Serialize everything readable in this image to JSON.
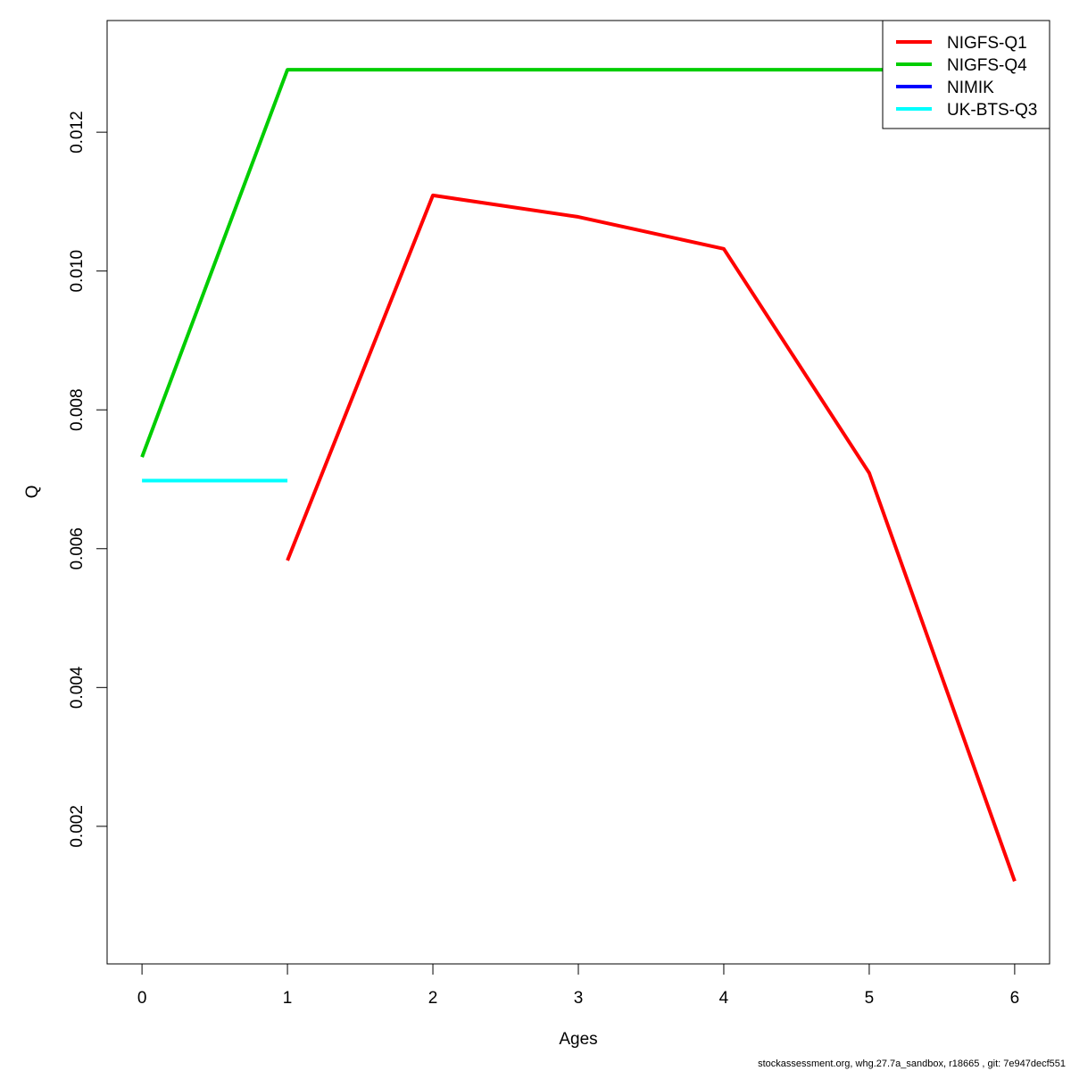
{
  "chart_data": {
    "type": "line",
    "title": "",
    "xlabel": "Ages",
    "ylabel": "Q",
    "xlim": [
      -0.24,
      6.24
    ],
    "ylim": [
      1.8e-05,
      0.013609
    ],
    "x_ticks": [
      0,
      1,
      2,
      3,
      4,
      5,
      6
    ],
    "x_tick_labels": [
      "0",
      "1",
      "2",
      "3",
      "4",
      "5",
      "6"
    ],
    "y_ticks": [
      0.002,
      0.004,
      0.006,
      0.008,
      0.01,
      0.012
    ],
    "y_tick_labels": [
      "0.002",
      "0.004",
      "0.006",
      "0.008",
      "0.010",
      "0.012"
    ],
    "grid": false,
    "legend_position": "top-right",
    "series": [
      {
        "name": "NIGFS-Q1",
        "color": "#ff0000",
        "x": [
          1,
          2,
          3,
          4,
          5,
          6
        ],
        "y": [
          0.00583,
          0.01109,
          0.01078,
          0.01032,
          0.00709,
          0.00121
        ]
      },
      {
        "name": "NIGFS-Q4",
        "color": "#00cd00",
        "x": [
          0,
          1,
          2,
          3,
          4,
          5,
          6
        ],
        "y": [
          0.00732,
          0.0129,
          0.0129,
          0.0129,
          0.0129,
          0.0129,
          0.0129
        ]
      },
      {
        "name": "NIMIK",
        "color": "#0000ff",
        "x": [],
        "y": []
      },
      {
        "name": "UK-BTS-Q3",
        "color": "#00ffff",
        "x": [
          0,
          1
        ],
        "y": [
          0.00698,
          0.00698
        ]
      }
    ],
    "footer": "stockassessment.org, whg.27.7a_sandbox, r18665 , git: 7e947decf551"
  }
}
